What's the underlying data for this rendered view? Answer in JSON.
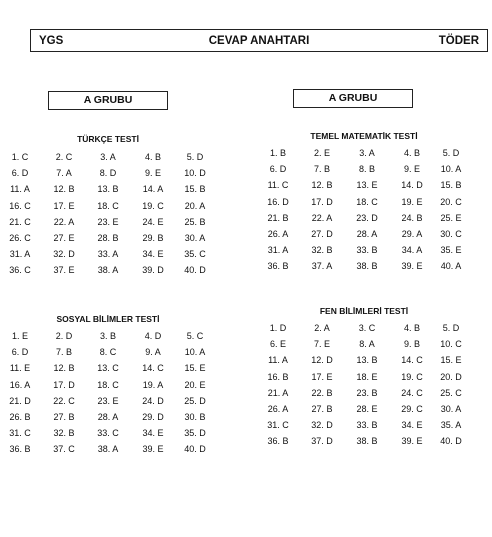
{
  "header": {
    "left": "YGS",
    "center": "CEVAP ANAHTARI",
    "right": "TÖDER"
  },
  "groups": [
    "A GRUBU",
    "A GRUBU"
  ],
  "sections": [
    {
      "title": "TÜRKÇE TESTİ",
      "answers": [
        "1. C",
        "2. C",
        "3. A",
        "4. B",
        "5. D",
        "6. D",
        "7. A",
        "8. D",
        "9. E",
        "10. D",
        "11. A",
        "12. B",
        "13. B",
        "14. A",
        "15. B",
        "16. C",
        "17. E",
        "18. C",
        "19. C",
        "20. A",
        "21. C",
        "22. A",
        "23. E",
        "24. E",
        "25. B",
        "26. C",
        "27. E",
        "28. B",
        "29. B",
        "30. A",
        "31. A",
        "32. D",
        "33. A",
        "34. E",
        "35. C",
        "36. C",
        "37. E",
        "38. A",
        "39. D",
        "40. D"
      ]
    },
    {
      "title": "TEMEL MATEMATİK TESTİ",
      "answers": [
        "1. B",
        "2. E",
        "3. A",
        "4. B",
        "5. D",
        "6. D",
        "7. B",
        "8. B",
        "9. E",
        "10. A",
        "11. C",
        "12. B",
        "13. E",
        "14. D",
        "15. B",
        "16. D",
        "17. D",
        "18. C",
        "19. E",
        "20. C",
        "21. B",
        "22. A",
        "23. D",
        "24. B",
        "25. E",
        "26. A",
        "27. D",
        "28. A",
        "29. A",
        "30. C",
        "31. A",
        "32. B",
        "33. B",
        "34. A",
        "35. E",
        "36. B",
        "37. A",
        "38. B",
        "39. E",
        "40. A"
      ]
    },
    {
      "title": "SOSYAL BİLİMLER TESTİ",
      "answers": [
        "1. E",
        "2. D",
        "3. B",
        "4. D",
        "5. C",
        "6. D",
        "7. B",
        "8. C",
        "9. A",
        "10. A",
        "11. E",
        "12. B",
        "13. C",
        "14. C",
        "15. E",
        "16. A",
        "17. D",
        "18. C",
        "19. A",
        "20. E",
        "21. D",
        "22. C",
        "23. E",
        "24. D",
        "25. D",
        "26. B",
        "27. B",
        "28. A",
        "29. D",
        "30. B",
        "31. C",
        "32. B",
        "33. C",
        "34. E",
        "35. D",
        "36. B",
        "37. C",
        "38. A",
        "39. E",
        "40. D"
      ]
    },
    {
      "title": "FEN BİLİMLERİ TESTİ",
      "answers": [
        "1. D",
        "2. A",
        "3. C",
        "4. B",
        "5. D",
        "6. E",
        "7. E",
        "8. A",
        "9. B",
        "10. C",
        "11. A",
        "12. D",
        "13. B",
        "14. C",
        "15. E",
        "16. B",
        "17. E",
        "18. E",
        "19. C",
        "20. D",
        "21. A",
        "22. B",
        "23. B",
        "24. C",
        "25. C",
        "26. A",
        "27. B",
        "28. E",
        "29. C",
        "30. A",
        "31. C",
        "32. D",
        "33. B",
        "34. E",
        "35. A",
        "36. B",
        "37. D",
        "38. B",
        "39. E",
        "40. D"
      ]
    }
  ]
}
